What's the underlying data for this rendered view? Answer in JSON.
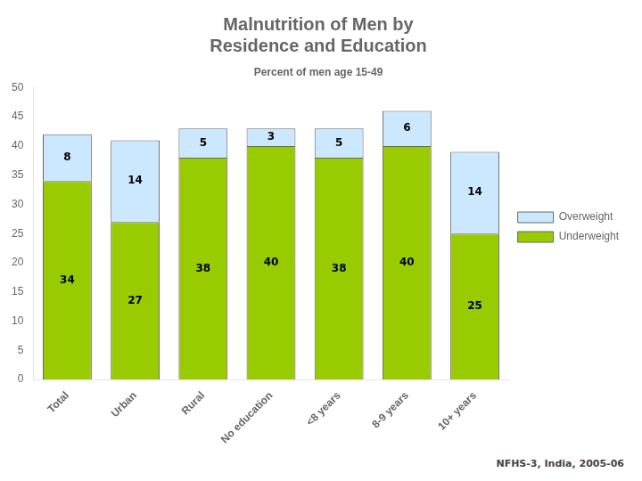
{
  "chart_data": {
    "type": "bar",
    "title": [
      "Malnutrition of Men by",
      "Residence and Education"
    ],
    "subtitle": "Percent of men age 15-49",
    "annotations": [
      "NFHS-3, India, 2005-06"
    ],
    "categories": [
      "Total",
      "Urban",
      "Rural",
      "No education",
      "<8 years",
      "8-9 years",
      "10+ years"
    ],
    "series": [
      {
        "name": "Underweight",
        "color": "#99cc00",
        "values": [
          34,
          27,
          38,
          40,
          38,
          40,
          25
        ]
      },
      {
        "name": "Overweight",
        "color": "#cce8ff",
        "values": [
          8,
          14,
          5,
          3,
          5,
          6,
          14
        ]
      }
    ],
    "stacked": true,
    "data_labels": true,
    "legend": "right",
    "grid": false,
    "ylim": [
      0,
      50
    ],
    "yticks": [
      0,
      5,
      10,
      15,
      20,
      25,
      30,
      35,
      40,
      45,
      50
    ]
  }
}
